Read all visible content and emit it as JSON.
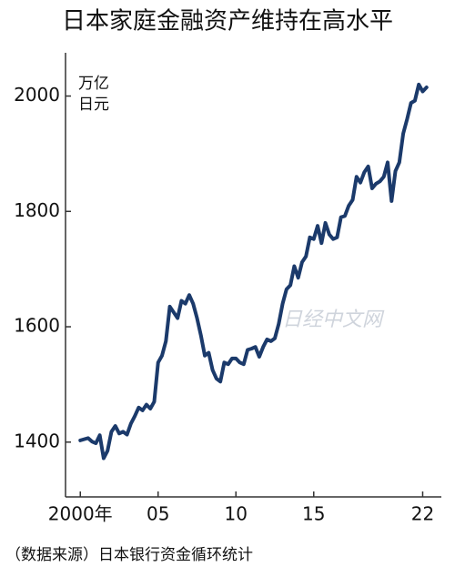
{
  "chart_data": {
    "type": "line",
    "title": "日本家庭金融资产维持在高水平",
    "y_unit": [
      "万亿",
      "日元"
    ],
    "source": "（数据来源）日本银行资金循环统计",
    "watermark": "日经中文网",
    "x": [
      2000,
      2000.25,
      2000.5,
      2000.75,
      2001,
      2001.25,
      2001.5,
      2001.75,
      2002,
      2002.25,
      2002.5,
      2002.75,
      2003,
      2003.25,
      2003.5,
      2003.75,
      2004,
      2004.25,
      2004.5,
      2004.75,
      2005,
      2005.25,
      2005.5,
      2005.75,
      2006,
      2006.25,
      2006.5,
      2006.75,
      2007,
      2007.25,
      2007.5,
      2007.75,
      2008,
      2008.25,
      2008.5,
      2008.75,
      2009,
      2009.25,
      2009.5,
      2009.75,
      2010,
      2010.25,
      2010.5,
      2010.75,
      2011,
      2011.25,
      2011.5,
      2011.75,
      2012,
      2012.25,
      2012.5,
      2012.75,
      2013,
      2013.25,
      2013.5,
      2013.75,
      2014,
      2014.25,
      2014.5,
      2014.75,
      2015,
      2015.25,
      2015.5,
      2015.75,
      2016,
      2016.25,
      2016.5,
      2016.75,
      2017,
      2017.25,
      2017.5,
      2017.75,
      2018,
      2018.25,
      2018.5,
      2018.75,
      2019,
      2019.25,
      2019.5,
      2019.75,
      2020,
      2020.25,
      2020.5,
      2020.75,
      2021,
      2021.25,
      2021.5,
      2021.75,
      2022,
      2022.25
    ],
    "series": [
      {
        "color": "#1b3a6b",
        "values": [
          1403,
          1405,
          1407,
          1401,
          1398,
          1412,
          1372,
          1385,
          1418,
          1428,
          1415,
          1418,
          1413,
          1432,
          1445,
          1460,
          1455,
          1465,
          1458,
          1470,
          1538,
          1550,
          1575,
          1635,
          1625,
          1615,
          1645,
          1640,
          1655,
          1640,
          1615,
          1585,
          1550,
          1555,
          1525,
          1510,
          1505,
          1538,
          1535,
          1545,
          1545,
          1538,
          1535,
          1560,
          1562,
          1565,
          1548,
          1565,
          1578,
          1575,
          1580,
          1605,
          1640,
          1665,
          1672,
          1705,
          1685,
          1712,
          1722,
          1755,
          1752,
          1775,
          1745,
          1780,
          1760,
          1752,
          1755,
          1790,
          1792,
          1810,
          1820,
          1860,
          1850,
          1868,
          1878,
          1840,
          1848,
          1852,
          1860,
          1885,
          1818,
          1870,
          1885,
          1935,
          1960,
          1988,
          1992,
          2020,
          2008,
          2015
        ]
      }
    ],
    "xlim": [
      1999.05,
      2023.2
    ],
    "xticks": [
      {
        "value": 2000,
        "label": "2000年"
      },
      {
        "value": 2005,
        "label": "05"
      },
      {
        "value": 2010,
        "label": "10"
      },
      {
        "value": 2015,
        "label": "15"
      },
      {
        "value": 2022,
        "label": "22"
      }
    ],
    "ylim": [
      1305,
      2075
    ],
    "yticks": [
      1400,
      1600,
      1800,
      2000
    ],
    "grid": false
  }
}
